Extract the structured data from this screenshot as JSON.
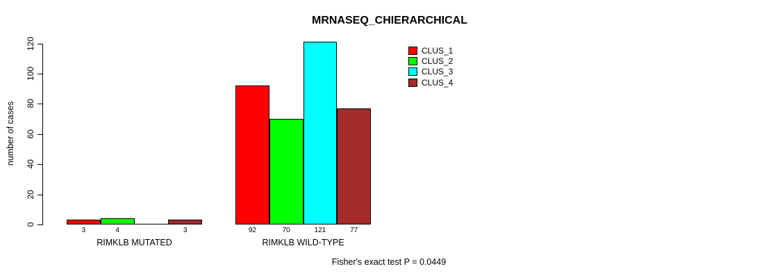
{
  "title": "MRNASEQ_CHIERARCHICAL",
  "footer": "Fisher's exact test P = 0.0449",
  "y_axis": {
    "label": "number of cases",
    "ticks": [
      0,
      20,
      40,
      60,
      80,
      100,
      120
    ]
  },
  "legend": {
    "items": [
      {
        "label": "CLUS_1",
        "color": "#FF0000"
      },
      {
        "label": "CLUS_2",
        "color": "#00FF00"
      },
      {
        "label": "CLUS_3",
        "color": "#00FFFF"
      },
      {
        "label": "CLUS_4",
        "color": "#A52A2A"
      }
    ]
  },
  "chart_data": {
    "type": "bar",
    "title": "MRNASEQ_CHIERARCHICAL",
    "ylabel": "number of cases",
    "ylim": [
      0,
      120
    ],
    "yticks": [
      0,
      20,
      40,
      60,
      80,
      100,
      120
    ],
    "categories": [
      "RIMKLB MUTATED",
      "RIMKLB WILD-TYPE"
    ],
    "series": [
      {
        "name": "CLUS_1",
        "color": "#FF0000",
        "values": [
          3,
          92
        ]
      },
      {
        "name": "CLUS_2",
        "color": "#00FF00",
        "values": [
          4,
          70
        ]
      },
      {
        "name": "CLUS_3",
        "color": "#00FFFF",
        "values": [
          0,
          121
        ]
      },
      {
        "name": "CLUS_4",
        "color": "#A52A2A",
        "values": [
          3,
          77
        ]
      }
    ],
    "bar_labels": [
      [
        "3",
        "4",
        "",
        "3"
      ],
      [
        "92",
        "70",
        "121",
        "77"
      ]
    ],
    "legend_position": "top-right",
    "grid": false,
    "annotation": "Fisher's exact test P = 0.0449"
  }
}
